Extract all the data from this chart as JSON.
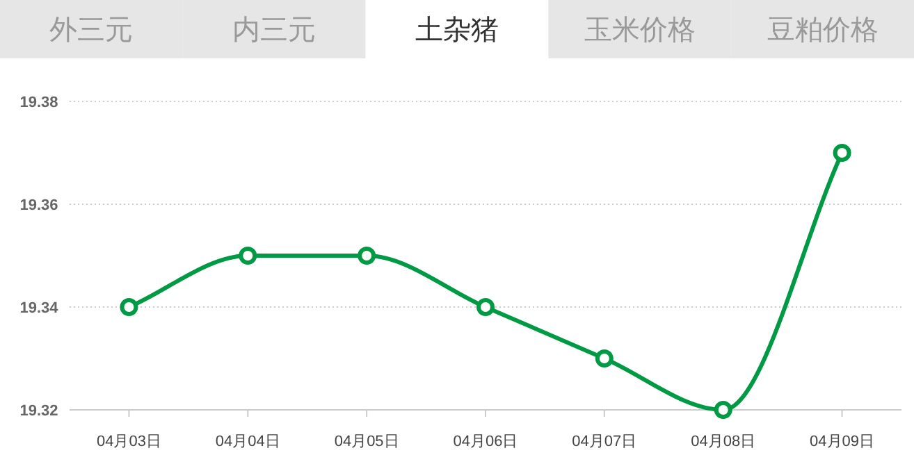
{
  "chart_data": {
    "type": "line",
    "annotations": [
      "外三元",
      "内三元",
      "土杂猪",
      "玉米价格",
      "豆粕价格"
    ],
    "categories": [
      "04月03日",
      "04月04日",
      "04月05日",
      "04月06日",
      "04月07日",
      "04月08日",
      "04月09日"
    ],
    "series": [
      {
        "color": "#009944",
        "values": [
          19.34,
          19.35,
          19.35,
          19.34,
          19.33,
          19.32,
          19.37
        ]
      }
    ],
    "ylim": [
      19.32,
      19.38
    ],
    "yticks": [
      19.32,
      19.34,
      19.36,
      19.38
    ],
    "grid": "y",
    "marker": "circle",
    "line_style": "solid"
  }
}
